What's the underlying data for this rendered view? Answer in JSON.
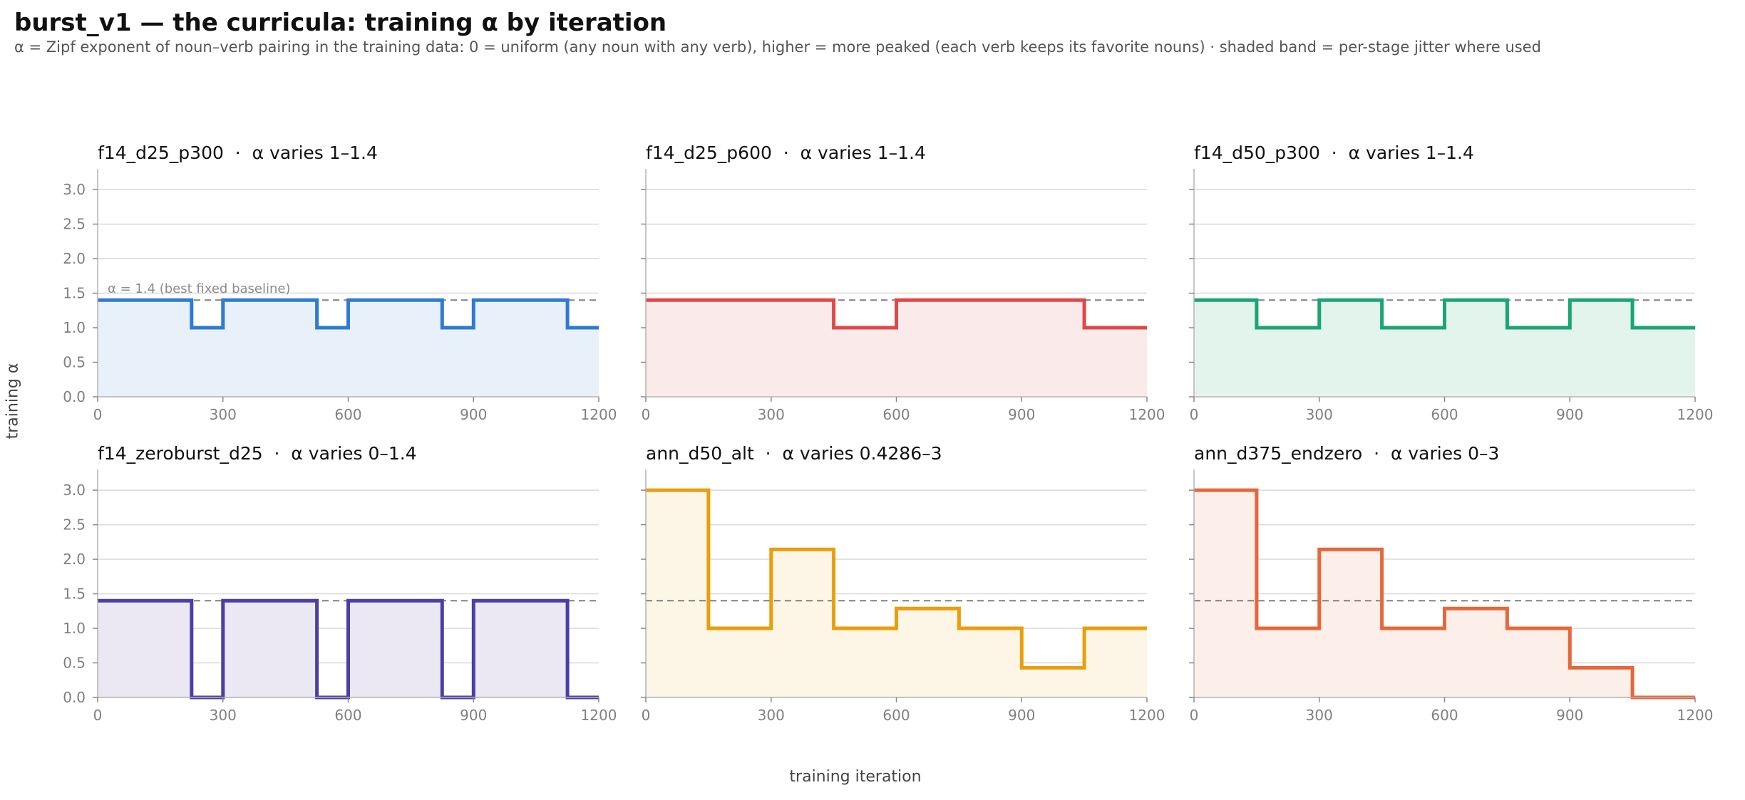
{
  "title": "burst_v1 — the curricula: training α by iteration",
  "subtitle": "α = Zipf exponent of noun–verb pairing in the training data: 0 = uniform (any noun with any verb), higher = more peaked (each verb keeps its favorite nouns) · shaded band = per-stage jitter where used",
  "ylabel": "training α",
  "xlabel": "training iteration",
  "baseline_label": "α = 1.4 (best fixed baseline)",
  "chart_data": [
    {
      "type": "line",
      "step": true,
      "panel_title": "f14_d25_p300",
      "panel_note": "α varies 1–1.4",
      "color": "#2f7bd1",
      "fill": "#e8f0fa",
      "x": [
        0,
        225,
        300,
        525,
        600,
        825,
        900,
        1125,
        1200
      ],
      "y": [
        1.4,
        1.0,
        1.4,
        1.0,
        1.4,
        1.0,
        1.4,
        1.0,
        1.0
      ],
      "baseline": 1.4,
      "xlim": [
        0,
        1200
      ],
      "ylim": [
        0,
        3.3
      ],
      "xticks": [
        "0",
        "300",
        "600",
        "900",
        "1200"
      ],
      "yticks": [
        "0.0",
        "0.5",
        "1.0",
        "1.5",
        "2.0",
        "2.5",
        "3.0"
      ]
    },
    {
      "type": "line",
      "step": true,
      "panel_title": "f14_d25_p600",
      "panel_note": "α varies 1–1.4",
      "color": "#e04848",
      "fill": "#fbeaea",
      "x": [
        0,
        450,
        600,
        1050,
        1200
      ],
      "y": [
        1.4,
        1.0,
        1.4,
        1.0,
        1.0
      ],
      "baseline": 1.4,
      "xlim": [
        0,
        1200
      ],
      "ylim": [
        0,
        3.3
      ],
      "xticks": [
        "0",
        "300",
        "600",
        "900",
        "1200"
      ]
    },
    {
      "type": "line",
      "step": true,
      "panel_title": "f14_d50_p300",
      "panel_note": "α varies 1–1.4",
      "color": "#1aa673",
      "fill": "#e3f4ed",
      "x": [
        0,
        150,
        300,
        450,
        600,
        750,
        900,
        1050,
        1200
      ],
      "y": [
        1.4,
        1.0,
        1.4,
        1.0,
        1.4,
        1.0,
        1.4,
        1.0,
        1.0
      ],
      "baseline": 1.4,
      "xlim": [
        0,
        1200
      ],
      "ylim": [
        0,
        3.3
      ],
      "xticks": [
        "0",
        "300",
        "600",
        "900",
        "1200"
      ]
    },
    {
      "type": "line",
      "step": true,
      "panel_title": "f14_zeroburst_d25",
      "panel_note": "α varies 0–1.4",
      "color": "#4b3fa3",
      "fill": "#ebe8f4",
      "x": [
        0,
        225,
        300,
        525,
        600,
        825,
        900,
        1125,
        1200
      ],
      "y": [
        1.4,
        0.0,
        1.4,
        0.0,
        1.4,
        0.0,
        1.4,
        0.0,
        0.0
      ],
      "baseline": 1.4,
      "xlim": [
        0,
        1200
      ],
      "ylim": [
        0,
        3.3
      ],
      "xticks": [
        "0",
        "300",
        "600",
        "900",
        "1200"
      ],
      "yticks": [
        "0.0",
        "0.5",
        "1.0",
        "1.5",
        "2.0",
        "2.5",
        "3.0"
      ]
    },
    {
      "type": "line",
      "step": true,
      "panel_title": "ann_d50_alt",
      "panel_note": "α varies 0.4286–3",
      "color": "#e89f0c",
      "fill": "#fdf5e5",
      "x": [
        0,
        150,
        300,
        450,
        600,
        750,
        900,
        1050,
        1200
      ],
      "y": [
        3.0,
        1.0,
        2.143,
        1.0,
        1.286,
        1.0,
        0.4286,
        1.0,
        1.0
      ],
      "baseline": 1.4,
      "xlim": [
        0,
        1200
      ],
      "ylim": [
        0,
        3.3
      ],
      "xticks": [
        "0",
        "300",
        "600",
        "900",
        "1200"
      ]
    },
    {
      "type": "line",
      "step": true,
      "panel_title": "ann_d375_endzero",
      "panel_note": "α varies 0–3",
      "color": "#e5683a",
      "fill": "#fceee8",
      "x": [
        0,
        150,
        300,
        450,
        600,
        750,
        900,
        1050,
        1200
      ],
      "y": [
        3.0,
        1.0,
        2.143,
        1.0,
        1.286,
        1.0,
        0.4286,
        0.0,
        0.0
      ],
      "baseline": 1.4,
      "xlim": [
        0,
        1200
      ],
      "ylim": [
        0,
        3.3
      ],
      "xticks": [
        "0",
        "300",
        "600",
        "900",
        "1200"
      ]
    }
  ]
}
